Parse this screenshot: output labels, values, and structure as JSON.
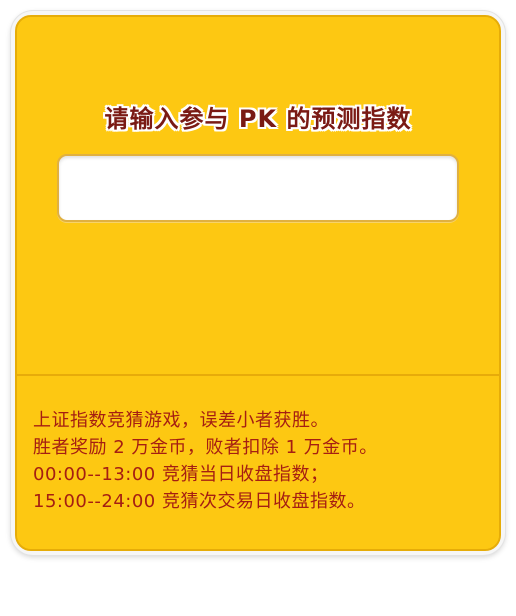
{
  "prompt": {
    "title": "请输入参与 PK 的预测指数"
  },
  "index_input": {
    "value": "",
    "placeholder": ""
  },
  "rules": {
    "lines": [
      "上证指数竞猜游戏，误差小者获胜。",
      "胜者奖励 2 万金币，败者扣除 1 万金币。",
      "00:00--13:00 竞猜当日收盘指数；",
      "15:00--24:00 竞猜次交易日收盘指数。"
    ]
  },
  "colors": {
    "panel": "#fdc812",
    "panel_border": "#e6ac08",
    "title_text": "#7a1a14",
    "rule_text": "#a51e12",
    "input_bg": "#ffffff"
  }
}
